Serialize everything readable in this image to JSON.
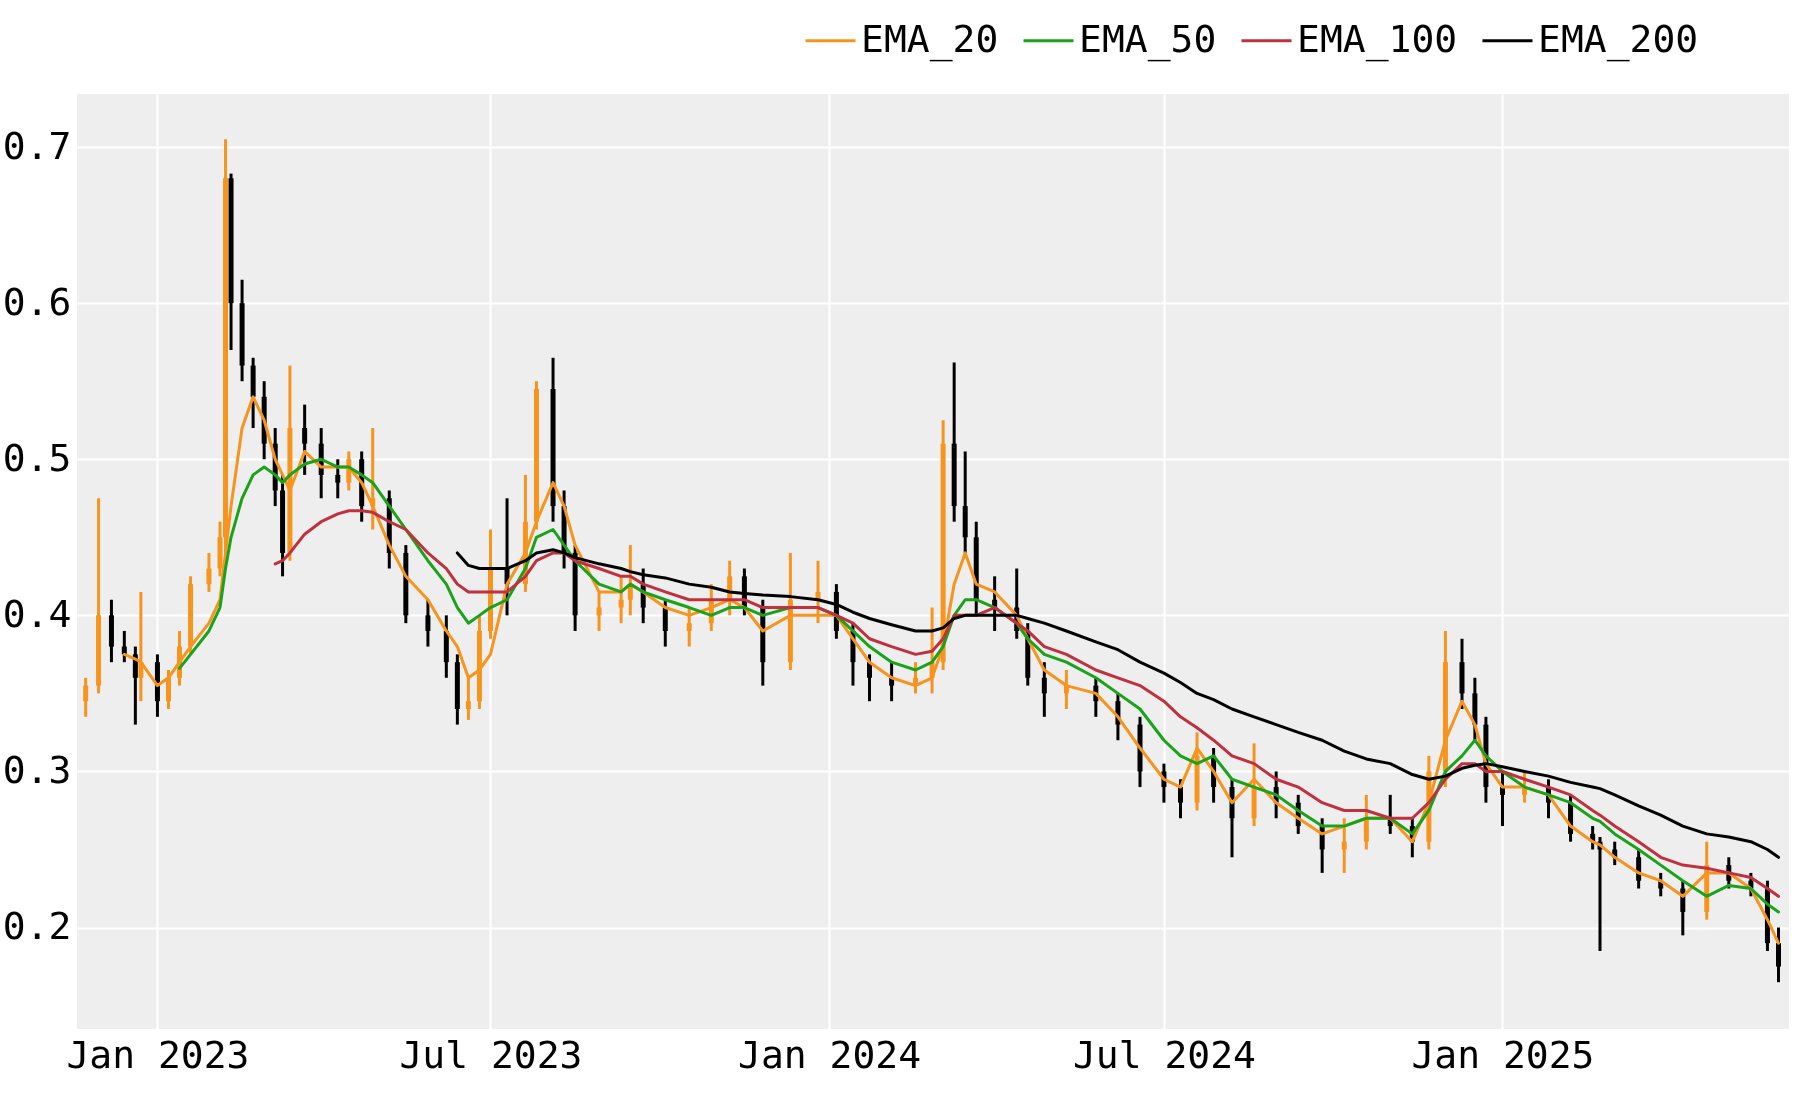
{
  "chart_data": {
    "type": "candlestick",
    "x": [
      "2022-11-23",
      "2022-11-30",
      "2022-12-07",
      "2022-12-14",
      "2022-12-20",
      "2022-12-23",
      "2023-01-01",
      "2023-01-07",
      "2023-01-13",
      "2023-01-19",
      "2023-01-29",
      "2023-02-04",
      "2023-02-07",
      "2023-02-10",
      "2023-02-16",
      "2023-02-22",
      "2023-02-28",
      "2023-03-06",
      "2023-03-10",
      "2023-03-14",
      "2023-03-22",
      "2023-03-31",
      "2023-04-09",
      "2023-04-15",
      "2023-04-22",
      "2023-04-28",
      "2023-05-07",
      "2023-05-16",
      "2023-05-28",
      "2023-06-07",
      "2023-06-13",
      "2023-06-19",
      "2023-06-25",
      "2023-07-01",
      "2023-07-10",
      "2023-07-20",
      "2023-07-26",
      "2023-08-04",
      "2023-08-10",
      "2023-08-16",
      "2023-08-29",
      "2023-09-10",
      "2023-09-15",
      "2023-09-22",
      "2023-10-04",
      "2023-10-17",
      "2023-10-29",
      "2023-11-08",
      "2023-11-16",
      "2023-11-26",
      "2023-12-11",
      "2023-12-26",
      "2024-01-05",
      "2024-01-14",
      "2024-01-23",
      "2024-02-04",
      "2024-02-17",
      "2024-02-26",
      "2024-03-03",
      "2024-03-09",
      "2024-03-15",
      "2024-03-21",
      "2024-03-31",
      "2024-04-12",
      "2024-04-18",
      "2024-04-27",
      "2024-05-09",
      "2024-05-25",
      "2024-06-06",
      "2024-06-18",
      "2024-07-01",
      "2024-07-10",
      "2024-07-19",
      "2024-07-28",
      "2024-08-07",
      "2024-08-19",
      "2024-08-31",
      "2024-09-12",
      "2024-09-25",
      "2024-10-07",
      "2024-10-19",
      "2024-11-01",
      "2024-11-13",
      "2024-11-22",
      "2024-12-01",
      "2024-12-10",
      "2024-12-17",
      "2024-12-23",
      "2025-01-01",
      "2025-01-13",
      "2025-01-26",
      "2025-02-07",
      "2025-02-19",
      "2025-02-23",
      "2025-03-03",
      "2025-03-16",
      "2025-03-28",
      "2025-04-09",
      "2025-04-22",
      "2025-05-04",
      "2025-05-16",
      "2025-05-25",
      "2025-05-31"
    ],
    "ohlc": [
      [
        0.345,
        0.36,
        0.335,
        0.355
      ],
      [
        0.355,
        0.475,
        0.35,
        0.4
      ],
      [
        0.4,
        0.41,
        0.37,
        0.38
      ],
      [
        0.38,
        0.39,
        0.37,
        0.375
      ],
      [
        0.375,
        0.38,
        0.33,
        0.36
      ],
      [
        0.36,
        0.415,
        0.345,
        0.37
      ],
      [
        0.37,
        0.375,
        0.335,
        0.345
      ],
      [
        0.345,
        0.365,
        0.34,
        0.36
      ],
      [
        0.36,
        0.39,
        0.355,
        0.38
      ],
      [
        0.38,
        0.425,
        0.375,
        0.42
      ],
      [
        0.42,
        0.44,
        0.415,
        0.43
      ],
      [
        0.43,
        0.46,
        0.425,
        0.45
      ],
      [
        0.45,
        0.705,
        0.44,
        0.68
      ],
      [
        0.68,
        0.683,
        0.57,
        0.6
      ],
      [
        0.6,
        0.615,
        0.55,
        0.56
      ],
      [
        0.56,
        0.565,
        0.52,
        0.54
      ],
      [
        0.54,
        0.55,
        0.5,
        0.51
      ],
      [
        0.51,
        0.52,
        0.47,
        0.48
      ],
      [
        0.48,
        0.49,
        0.425,
        0.44
      ],
      [
        0.44,
        0.56,
        0.435,
        0.52
      ],
      [
        0.52,
        0.535,
        0.49,
        0.51
      ],
      [
        0.51,
        0.52,
        0.475,
        0.49
      ],
      [
        0.49,
        0.5,
        0.475,
        0.485
      ],
      [
        0.485,
        0.505,
        0.48,
        0.5
      ],
      [
        0.5,
        0.505,
        0.46,
        0.47
      ],
      [
        0.47,
        0.52,
        0.455,
        0.475
      ],
      [
        0.475,
        0.48,
        0.43,
        0.44
      ],
      [
        0.44,
        0.445,
        0.395,
        0.4
      ],
      [
        0.4,
        0.41,
        0.38,
        0.39
      ],
      [
        0.39,
        0.4,
        0.36,
        0.37
      ],
      [
        0.37,
        0.375,
        0.33,
        0.34
      ],
      [
        0.34,
        0.36,
        0.333,
        0.345
      ],
      [
        0.345,
        0.4,
        0.34,
        0.39
      ],
      [
        0.39,
        0.455,
        0.385,
        0.43
      ],
      [
        0.43,
        0.475,
        0.4,
        0.42
      ],
      [
        0.42,
        0.49,
        0.415,
        0.46
      ],
      [
        0.46,
        0.55,
        0.455,
        0.545
      ],
      [
        0.545,
        0.565,
        0.46,
        0.47
      ],
      [
        0.47,
        0.48,
        0.43,
        0.44
      ],
      [
        0.44,
        0.445,
        0.39,
        0.4
      ],
      [
        0.4,
        0.415,
        0.39,
        0.405
      ],
      [
        0.405,
        0.425,
        0.395,
        0.41
      ],
      [
        0.41,
        0.445,
        0.4,
        0.42
      ],
      [
        0.42,
        0.43,
        0.395,
        0.405
      ],
      [
        0.405,
        0.41,
        0.38,
        0.39
      ],
      [
        0.39,
        0.405,
        0.38,
        0.395
      ],
      [
        0.395,
        0.42,
        0.39,
        0.41
      ],
      [
        0.41,
        0.435,
        0.4,
        0.425
      ],
      [
        0.425,
        0.43,
        0.4,
        0.405
      ],
      [
        0.405,
        0.41,
        0.355,
        0.37
      ],
      [
        0.37,
        0.44,
        0.365,
        0.41
      ],
      [
        0.41,
        0.435,
        0.395,
        0.415
      ],
      [
        0.415,
        0.42,
        0.385,
        0.39
      ],
      [
        0.39,
        0.395,
        0.355,
        0.37
      ],
      [
        0.37,
        0.375,
        0.345,
        0.36
      ],
      [
        0.36,
        0.37,
        0.345,
        0.355
      ],
      [
        0.355,
        0.37,
        0.35,
        0.36
      ],
      [
        0.36,
        0.405,
        0.35,
        0.37
      ],
      [
        0.37,
        0.525,
        0.365,
        0.51
      ],
      [
        0.51,
        0.562,
        0.46,
        0.47
      ],
      [
        0.47,
        0.505,
        0.44,
        0.45
      ],
      [
        0.45,
        0.46,
        0.4,
        0.41
      ],
      [
        0.41,
        0.425,
        0.39,
        0.405
      ],
      [
        0.405,
        0.43,
        0.385,
        0.39
      ],
      [
        0.39,
        0.395,
        0.355,
        0.36
      ],
      [
        0.36,
        0.37,
        0.335,
        0.35
      ],
      [
        0.35,
        0.365,
        0.34,
        0.355
      ],
      [
        0.355,
        0.36,
        0.335,
        0.345
      ],
      [
        0.345,
        0.35,
        0.32,
        0.33
      ],
      [
        0.33,
        0.335,
        0.29,
        0.3
      ],
      [
        0.3,
        0.305,
        0.28,
        0.29
      ],
      [
        0.29,
        0.295,
        0.27,
        0.28
      ],
      [
        0.28,
        0.325,
        0.275,
        0.31
      ],
      [
        0.31,
        0.315,
        0.28,
        0.29
      ],
      [
        0.29,
        0.295,
        0.245,
        0.27
      ],
      [
        0.27,
        0.318,
        0.265,
        0.29
      ],
      [
        0.29,
        0.3,
        0.27,
        0.28
      ],
      [
        0.28,
        0.285,
        0.26,
        0.265
      ],
      [
        0.265,
        0.27,
        0.235,
        0.25
      ],
      [
        0.25,
        0.27,
        0.235,
        0.255
      ],
      [
        0.255,
        0.285,
        0.25,
        0.27
      ],
      [
        0.27,
        0.285,
        0.26,
        0.265
      ],
      [
        0.265,
        0.27,
        0.245,
        0.255
      ],
      [
        0.255,
        0.31,
        0.25,
        0.3
      ],
      [
        0.3,
        0.39,
        0.29,
        0.37
      ],
      [
        0.37,
        0.385,
        0.34,
        0.35
      ],
      [
        0.35,
        0.36,
        0.32,
        0.33
      ],
      [
        0.33,
        0.335,
        0.28,
        0.29
      ],
      [
        0.29,
        0.3,
        0.265,
        0.285
      ],
      [
        0.285,
        0.3,
        0.28,
        0.29
      ],
      [
        0.29,
        0.295,
        0.27,
        0.28
      ],
      [
        0.28,
        0.285,
        0.255,
        0.26
      ],
      [
        0.26,
        0.265,
        0.25,
        0.255
      ],
      [
        0.255,
        0.258,
        0.185,
        0.25
      ],
      [
        0.25,
        0.255,
        0.24,
        0.245
      ],
      [
        0.245,
        0.25,
        0.225,
        0.23
      ],
      [
        0.23,
        0.235,
        0.22,
        0.225
      ],
      [
        0.225,
        0.23,
        0.195,
        0.21
      ],
      [
        0.21,
        0.255,
        0.205,
        0.24
      ],
      [
        0.24,
        0.245,
        0.225,
        0.23
      ],
      [
        0.23,
        0.235,
        0.22,
        0.225
      ],
      [
        0.225,
        0.23,
        0.185,
        0.19
      ],
      [
        0.19,
        0.2,
        0.165,
        0.175
      ]
    ],
    "colors": [
      "#f7941d",
      "#f7941d",
      "#000000",
      "#000000",
      "#000000",
      "#f7941d",
      "#000000",
      "#f7941d",
      "#f7941d",
      "#f7941d",
      "#f7941d",
      "#f7941d",
      "#f7941d",
      "#000000",
      "#000000",
      "#000000",
      "#000000",
      "#000000",
      "#000000",
      "#f7941d",
      "#000000",
      "#000000",
      "#000000",
      "#f7941d",
      "#000000",
      "#f7941d",
      "#000000",
      "#000000",
      "#000000",
      "#000000",
      "#000000",
      "#f7941d",
      "#f7941d",
      "#f7941d",
      "#000000",
      "#f7941d",
      "#f7941d",
      "#000000",
      "#000000",
      "#000000",
      "#f7941d",
      "#f7941d",
      "#f7941d",
      "#000000",
      "#000000",
      "#f7941d",
      "#f7941d",
      "#f7941d",
      "#000000",
      "#000000",
      "#f7941d",
      "#f7941d",
      "#000000",
      "#000000",
      "#000000",
      "#000000",
      "#f7941d",
      "#f7941d",
      "#f7941d",
      "#000000",
      "#000000",
      "#000000",
      "#000000",
      "#000000",
      "#000000",
      "#000000",
      "#f7941d",
      "#000000",
      "#000000",
      "#000000",
      "#000000",
      "#000000",
      "#f7941d",
      "#000000",
      "#000000",
      "#f7941d",
      "#000000",
      "#000000",
      "#000000",
      "#f7941d",
      "#f7941d",
      "#000000",
      "#000000",
      "#f7941d",
      "#f7941d",
      "#000000",
      "#000000",
      "#000000",
      "#000000",
      "#f7941d",
      "#000000",
      "#000000",
      "#000000",
      "#000000",
      "#000000",
      "#000000",
      "#000000",
      "#000000",
      "#f7941d",
      "#000000",
      "#000000",
      "#000000",
      "#000000"
    ],
    "series": [
      {
        "name": "EMA_20",
        "type": "line",
        "color": "#f7941d",
        "values": [
          null,
          null,
          null,
          0.375,
          0.372,
          0.37,
          0.355,
          0.36,
          0.37,
          0.38,
          0.395,
          0.41,
          0.44,
          0.47,
          0.52,
          0.54,
          0.525,
          0.5,
          0.49,
          0.48,
          0.505,
          0.495,
          0.495,
          0.495,
          0.485,
          0.47,
          0.445,
          0.425,
          0.41,
          0.39,
          0.38,
          0.36,
          0.365,
          0.375,
          0.42,
          0.44,
          0.46,
          0.485,
          0.47,
          0.445,
          0.415,
          0.415,
          0.42,
          0.415,
          0.405,
          0.4,
          0.405,
          0.41,
          0.405,
          0.39,
          0.4,
          0.4,
          0.4,
          0.385,
          0.37,
          0.36,
          0.355,
          0.36,
          0.38,
          0.42,
          0.44,
          0.42,
          0.415,
          0.4,
          0.385,
          0.365,
          0.355,
          0.35,
          0.335,
          0.315,
          0.295,
          0.29,
          0.315,
          0.3,
          0.28,
          0.295,
          0.28,
          0.27,
          0.26,
          0.265,
          0.27,
          0.27,
          0.255,
          0.28,
          0.32,
          0.345,
          0.33,
          0.305,
          0.29,
          0.29,
          0.285,
          0.265,
          0.255,
          0.253,
          0.245,
          0.235,
          0.23,
          0.22,
          0.235,
          0.235,
          0.225,
          0.205,
          0.19
        ]
      },
      {
        "name": "EMA_50",
        "type": "line",
        "color": "#1aa31a",
        "values": [
          null,
          null,
          null,
          null,
          null,
          null,
          null,
          null,
          0.366,
          0.375,
          0.39,
          0.405,
          0.43,
          0.45,
          0.475,
          0.49,
          0.495,
          0.49,
          0.485,
          0.49,
          0.497,
          0.5,
          0.495,
          0.495,
          0.49,
          0.485,
          0.47,
          0.455,
          0.435,
          0.42,
          0.405,
          0.395,
          0.4,
          0.405,
          0.41,
          0.43,
          0.45,
          0.455,
          0.445,
          0.435,
          0.42,
          0.415,
          0.42,
          0.415,
          0.41,
          0.405,
          0.4,
          0.405,
          0.405,
          0.4,
          0.405,
          0.405,
          0.4,
          0.39,
          0.38,
          0.37,
          0.365,
          0.37,
          0.38,
          0.4,
          0.41,
          0.41,
          0.405,
          0.395,
          0.385,
          0.375,
          0.37,
          0.36,
          0.35,
          0.34,
          0.32,
          0.31,
          0.305,
          0.31,
          0.295,
          0.29,
          0.285,
          0.275,
          0.265,
          0.265,
          0.27,
          0.27,
          0.26,
          0.275,
          0.3,
          0.31,
          0.32,
          0.31,
          0.3,
          0.29,
          0.285,
          0.28,
          0.27,
          0.268,
          0.26,
          0.25,
          0.24,
          0.23,
          0.22,
          0.227,
          0.225,
          0.215,
          0.21
        ]
      },
      {
        "name": "EMA_100",
        "type": "line",
        "color": "#c0303f",
        "values": [
          null,
          null,
          null,
          null,
          null,
          null,
          null,
          null,
          null,
          null,
          null,
          null,
          null,
          null,
          null,
          null,
          null,
          0.433,
          0.435,
          0.44,
          0.452,
          0.46,
          0.465,
          0.467,
          0.467,
          0.466,
          0.46,
          0.455,
          0.44,
          0.43,
          0.42,
          0.415,
          0.415,
          0.415,
          0.415,
          0.425,
          0.435,
          0.44,
          0.44,
          0.435,
          0.43,
          0.425,
          0.425,
          0.42,
          0.415,
          0.41,
          0.41,
          0.41,
          0.41,
          0.405,
          0.405,
          0.405,
          0.4,
          0.395,
          0.385,
          0.38,
          0.375,
          0.377,
          0.385,
          0.4,
          0.4,
          0.4,
          0.405,
          0.395,
          0.39,
          0.38,
          0.375,
          0.365,
          0.36,
          0.355,
          0.345,
          0.335,
          0.328,
          0.32,
          0.31,
          0.305,
          0.295,
          0.29,
          0.28,
          0.275,
          0.275,
          0.27,
          0.27,
          0.28,
          0.295,
          0.305,
          0.305,
          0.3,
          0.3,
          0.295,
          0.29,
          0.285,
          0.275,
          0.272,
          0.265,
          0.255,
          0.245,
          0.24,
          0.238,
          0.235,
          0.232,
          0.225,
          0.22
        ]
      },
      {
        "name": "EMA_200",
        "type": "line",
        "color": "#000000",
        "values": [
          null,
          null,
          null,
          null,
          null,
          null,
          null,
          null,
          null,
          null,
          null,
          null,
          null,
          null,
          null,
          null,
          null,
          null,
          null,
          null,
          null,
          null,
          null,
          null,
          null,
          null,
          null,
          null,
          null,
          null,
          0.44,
          0.432,
          0.43,
          0.43,
          0.43,
          0.435,
          0.44,
          0.442,
          0.44,
          0.437,
          0.433,
          0.43,
          0.428,
          0.426,
          0.424,
          0.42,
          0.418,
          0.415,
          0.414,
          0.413,
          0.412,
          0.41,
          0.407,
          0.402,
          0.398,
          0.394,
          0.39,
          0.39,
          0.392,
          0.398,
          0.4,
          0.4,
          0.4,
          0.4,
          0.398,
          0.395,
          0.39,
          0.383,
          0.378,
          0.37,
          0.363,
          0.357,
          0.35,
          0.346,
          0.34,
          0.335,
          0.33,
          0.325,
          0.32,
          0.313,
          0.308,
          0.305,
          0.298,
          0.295,
          0.297,
          0.302,
          0.304,
          0.305,
          0.303,
          0.3,
          0.297,
          0.293,
          0.29,
          0.289,
          0.285,
          0.278,
          0.272,
          0.265,
          0.26,
          0.258,
          0.255,
          0.25,
          0.245
        ]
      }
    ],
    "xlim": [
      "2022-11-21",
      "2025-06-03"
    ],
    "xticks": [
      {
        "value": "2023-01-01",
        "label": "Jan 2023"
      },
      {
        "value": "2023-07-01",
        "label": "Jul 2023"
      },
      {
        "value": "2024-01-01",
        "label": "Jan 2024"
      },
      {
        "value": "2024-07-01",
        "label": "Jul 2024"
      },
      {
        "value": "2025-01-01",
        "label": "Jan 2025"
      }
    ],
    "ylim": [
      0.135,
      0.734
    ],
    "yticks": [
      0.2,
      0.3,
      0.4,
      0.5,
      0.6,
      0.7
    ],
    "grid": true,
    "legend": "top right"
  }
}
